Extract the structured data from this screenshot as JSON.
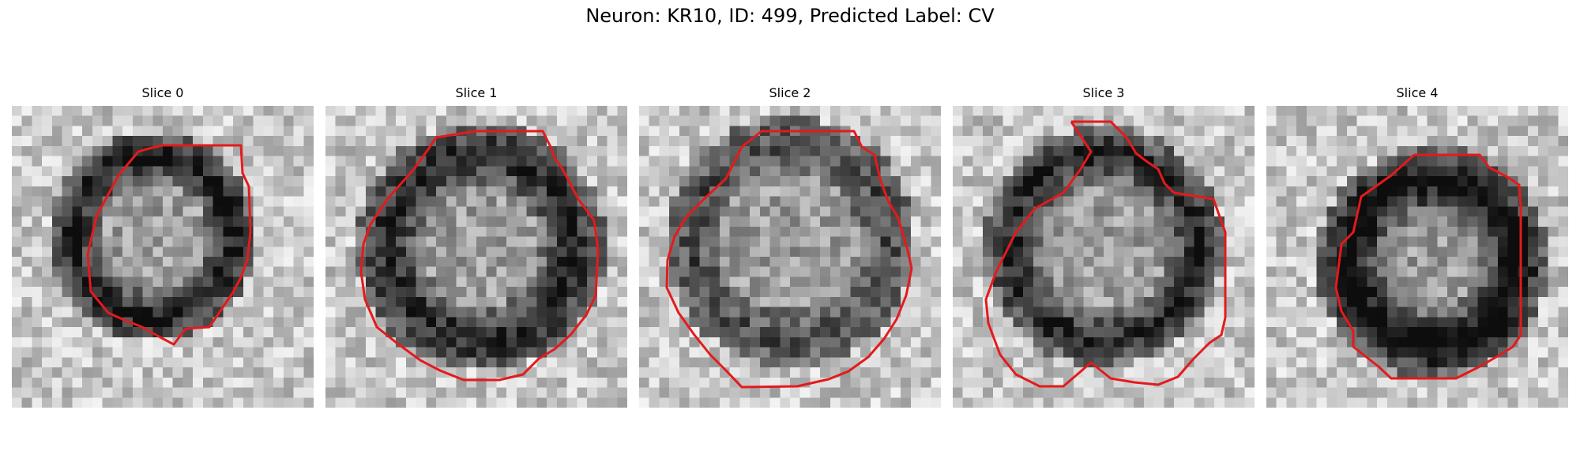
{
  "figure": {
    "title": "Neuron: KR10, ID: 499, Predicted Label: CV",
    "contour_color": "#e41a1c",
    "panels": [
      {
        "title": "Slice 0"
      },
      {
        "title": "Slice 1"
      },
      {
        "title": "Slice 2"
      },
      {
        "title": "Slice 3"
      },
      {
        "title": "Slice 4"
      }
    ]
  }
}
